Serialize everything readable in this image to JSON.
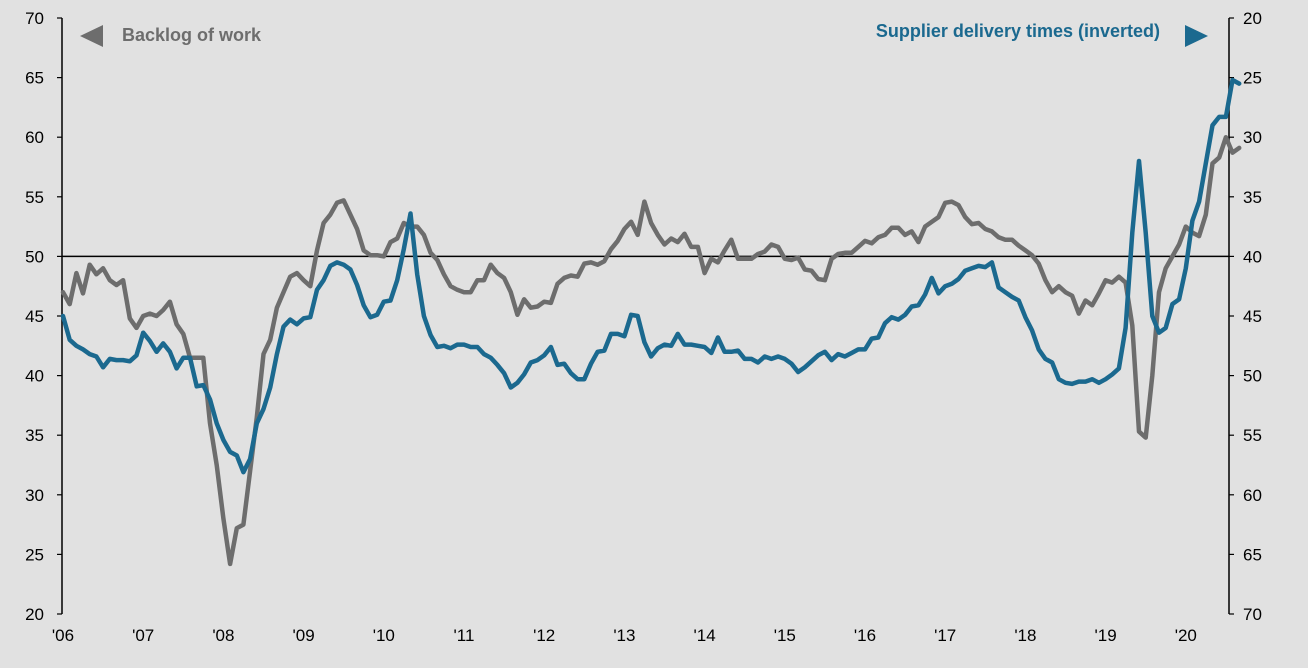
{
  "chart_data": {
    "type": "line",
    "title": "",
    "x_tick_labels": [
      "'06",
      "'07",
      "'08",
      "'09",
      "'10",
      "'11",
      "'12",
      "'13",
      "'14",
      "'15",
      "'16",
      "'17",
      "'18",
      "'19",
      "'20"
    ],
    "y_left": {
      "range": [
        20,
        70
      ],
      "ticks": [
        20,
        25,
        30,
        35,
        40,
        45,
        50,
        55,
        60,
        65,
        70
      ]
    },
    "y_right": {
      "range": [
        70,
        20
      ],
      "inverted": true,
      "ticks": [
        70,
        65,
        60,
        55,
        50,
        45,
        40,
        35,
        30,
        25,
        20
      ]
    },
    "reference_line": {
      "y": 50,
      "axis": "left"
    },
    "grid": false,
    "x_start": 2006.0,
    "x_step": 0.08333,
    "series": [
      {
        "name": "Backlog of work",
        "axis": "left",
        "color": "#6d6d6d",
        "legend_arrow": "left",
        "values": [
          47.0,
          46.0,
          48.6,
          46.9,
          49.3,
          48.5,
          49.0,
          48.0,
          47.6,
          48.0,
          44.8,
          44.0,
          45.0,
          45.2,
          45.0,
          45.5,
          46.2,
          44.3,
          43.5,
          41.5,
          41.5,
          41.5,
          36.0,
          32.5,
          28.0,
          24.2,
          27.2,
          27.5,
          32.0,
          36.5,
          41.8,
          43.0,
          45.7,
          47.0,
          48.3,
          48.6,
          48.0,
          47.5,
          50.5,
          52.8,
          53.5,
          54.5,
          54.7,
          53.5,
          52.3,
          50.5,
          50.1,
          50.1,
          50.0,
          51.2,
          51.5,
          52.8,
          52.5,
          52.5,
          51.8,
          50.3,
          49.7,
          48.5,
          47.5,
          47.2,
          47.0,
          47.0,
          48.0,
          48.0,
          49.3,
          48.6,
          48.2,
          47.0,
          45.1,
          46.4,
          45.7,
          45.8,
          46.2,
          46.1,
          47.7,
          48.2,
          48.4,
          48.3,
          49.4,
          49.5,
          49.3,
          49.6,
          50.6,
          51.3,
          52.3,
          52.9,
          51.8,
          54.6,
          52.8,
          51.8,
          51.0,
          51.5,
          51.2,
          51.9,
          50.8,
          50.8,
          48.6,
          49.8,
          49.5,
          50.5,
          51.4,
          49.8,
          49.8,
          49.8,
          50.2,
          50.4,
          51.0,
          50.8,
          49.8,
          49.7,
          49.9,
          48.9,
          48.8,
          48.1,
          48.0,
          49.8,
          50.2,
          50.3,
          50.3,
          50.8,
          51.3,
          51.1,
          51.6,
          51.8,
          52.4,
          52.4,
          51.8,
          52.1,
          51.2,
          52.5,
          52.9,
          53.3,
          54.5,
          54.6,
          54.3,
          53.3,
          52.7,
          52.8,
          52.3,
          52.1,
          51.6,
          51.4,
          51.4,
          50.9,
          50.5,
          50.1,
          49.4,
          48.0,
          47.0,
          47.5,
          47.0,
          46.7,
          45.2,
          46.3,
          45.9,
          46.9,
          48.0,
          47.8,
          48.3,
          47.8,
          44.2,
          35.3,
          34.8,
          40.0,
          47.0,
          49.0,
          50.0,
          51.0,
          52.5,
          52.0,
          51.7,
          53.5,
          57.8,
          58.3,
          60.0,
          58.7,
          59.1
        ]
      },
      {
        "name": "Supplier delivery times (inverted)",
        "axis": "right",
        "color": "#1b698f",
        "legend_arrow": "right",
        "values": [
          45.0,
          47.0,
          47.5,
          47.8,
          48.2,
          48.4,
          49.3,
          48.6,
          48.7,
          48.7,
          48.8,
          48.3,
          46.4,
          47.1,
          48.0,
          47.3,
          48.0,
          49.4,
          48.5,
          48.5,
          50.9,
          50.8,
          52.0,
          54.0,
          55.4,
          56.4,
          56.7,
          58.1,
          57.0,
          54.0,
          52.8,
          51.0,
          48.2,
          45.9,
          45.3,
          45.7,
          45.2,
          45.1,
          42.8,
          42.0,
          40.8,
          40.5,
          40.7,
          41.1,
          42.4,
          44.1,
          45.1,
          44.9,
          43.8,
          43.7,
          42.0,
          39.4,
          36.4,
          41.5,
          45.0,
          46.6,
          47.6,
          47.5,
          47.7,
          47.4,
          47.4,
          47.6,
          47.6,
          48.2,
          48.5,
          49.1,
          49.8,
          51.0,
          50.6,
          49.9,
          48.9,
          48.7,
          48.3,
          47.6,
          49.1,
          49.0,
          49.8,
          50.3,
          50.3,
          49.0,
          48.0,
          47.9,
          46.5,
          46.5,
          46.7,
          44.9,
          45.0,
          47.2,
          48.4,
          47.7,
          47.4,
          47.5,
          46.5,
          47.4,
          47.4,
          47.5,
          47.6,
          48.1,
          46.8,
          48.0,
          48.0,
          47.9,
          48.6,
          48.6,
          48.9,
          48.4,
          48.6,
          48.4,
          48.6,
          49.0,
          49.7,
          49.3,
          48.8,
          48.3,
          48.0,
          48.7,
          48.2,
          48.4,
          48.1,
          47.8,
          47.8,
          46.9,
          46.8,
          45.6,
          45.1,
          45.3,
          44.9,
          44.2,
          44.1,
          43.2,
          41.8,
          43.1,
          42.5,
          42.3,
          41.9,
          41.2,
          41.0,
          40.8,
          40.9,
          40.5,
          42.6,
          43.0,
          43.4,
          43.7,
          45.1,
          46.2,
          47.8,
          48.6,
          48.9,
          50.3,
          50.6,
          50.7,
          50.5,
          50.5,
          50.3,
          50.6,
          50.3,
          49.9,
          49.4,
          46.0,
          38.0,
          32.0,
          38.0,
          45.0,
          46.4,
          46.0,
          44.0,
          43.6,
          41.0,
          37.0,
          35.4,
          32.2,
          29.0,
          28.3,
          28.3,
          25.2,
          25.5
        ]
      }
    ]
  }
}
